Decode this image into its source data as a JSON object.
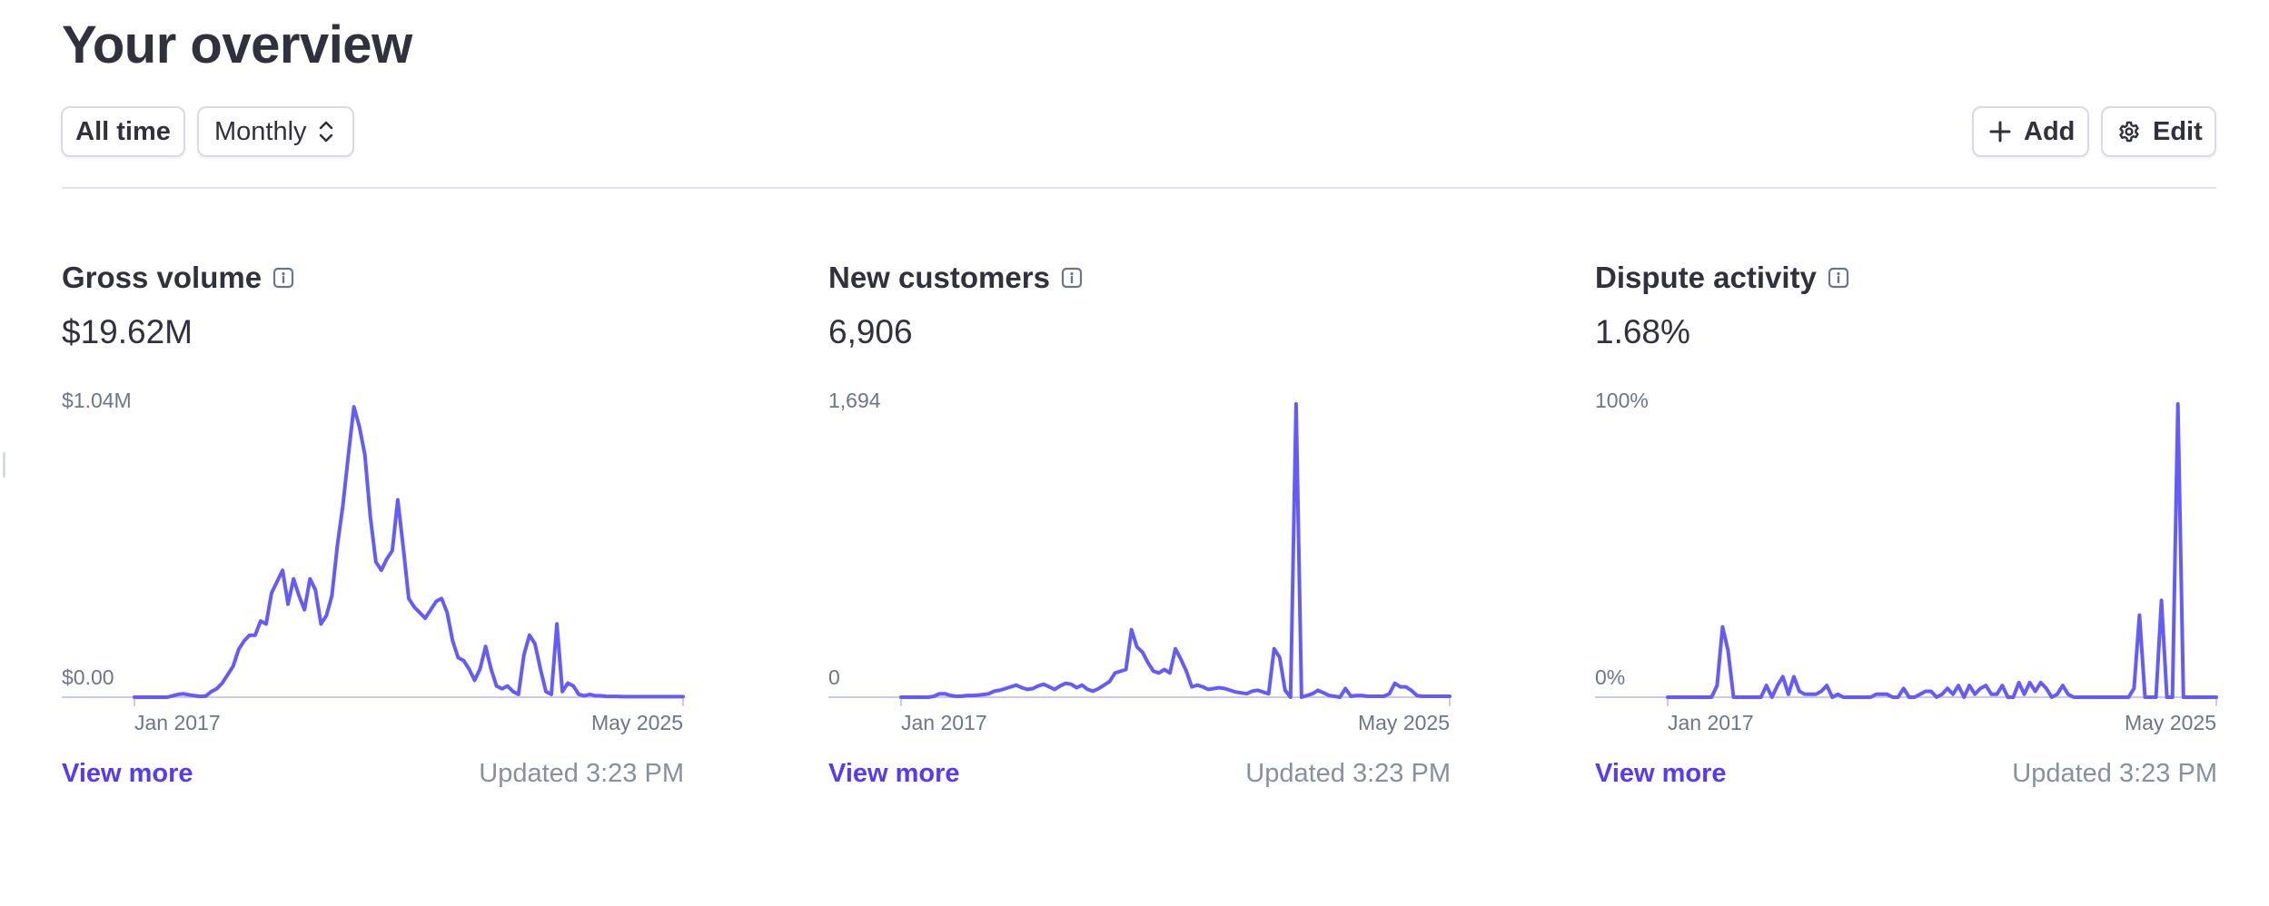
{
  "page": {
    "title": "Your overview"
  },
  "toolbar": {
    "range_label": "All time",
    "interval_label": "Monthly",
    "add_label": "Add",
    "edit_label": "Edit"
  },
  "colors": {
    "line": "#635bff",
    "link": "#533afd",
    "muted": "#87909f",
    "baseline": "#c9cbe8"
  },
  "cards": [
    {
      "title": "Gross volume",
      "value": "$19.62M",
      "y_max_label": "$1.04M",
      "y_min_label": "$0.00",
      "x_start_label": "Jan 2017",
      "x_end_label": "May 2025",
      "link_label": "View more",
      "updated_label": "Updated 3:23 PM"
    },
    {
      "title": "New customers",
      "value": "6,906",
      "y_max_label": "1,694",
      "y_min_label": "0",
      "x_start_label": "Jan 2017",
      "x_end_label": "May 2025",
      "link_label": "View more",
      "updated_label": "Updated 3:23 PM"
    },
    {
      "title": "Dispute activity",
      "value": "1.68%",
      "y_max_label": "100%",
      "y_min_label": "0%",
      "x_start_label": "Jan 2017",
      "x_end_label": "May 2025",
      "link_label": "View more",
      "updated_label": "Updated 3:23 PM"
    }
  ],
  "chart_data": [
    {
      "type": "line",
      "title": "Gross volume",
      "ylim": [
        0,
        1.04
      ],
      "x_range": [
        "Jan 2017",
        "May 2025"
      ],
      "values": [
        0,
        0,
        0,
        0,
        0,
        0,
        0,
        0.005,
        0.01,
        0.012,
        0.008,
        0.005,
        0.003,
        0.004,
        0.02,
        0.03,
        0.05,
        0.08,
        0.11,
        0.17,
        0.2,
        0.22,
        0.22,
        0.27,
        0.26,
        0.37,
        0.41,
        0.45,
        0.33,
        0.42,
        0.36,
        0.31,
        0.42,
        0.38,
        0.26,
        0.29,
        0.36,
        0.54,
        0.68,
        0.86,
        1.03,
        0.96,
        0.86,
        0.64,
        0.48,
        0.45,
        0.49,
        0.52,
        0.7,
        0.53,
        0.35,
        0.32,
        0.3,
        0.28,
        0.31,
        0.34,
        0.35,
        0.3,
        0.2,
        0.14,
        0.13,
        0.1,
        0.06,
        0.1,
        0.18,
        0.1,
        0.04,
        0.03,
        0.04,
        0.02,
        0.01,
        0.15,
        0.22,
        0.19,
        0.1,
        0.02,
        0.01,
        0.26,
        0.02,
        0.05,
        0.04,
        0.01,
        0.005,
        0.01,
        0.005,
        0.005,
        0.003,
        0.003,
        0.003,
        0.002,
        0.002,
        0.002,
        0.002,
        0.002,
        0.002,
        0.002,
        0.002,
        0.002,
        0.002,
        0.002,
        0.002
      ]
    },
    {
      "type": "line",
      "title": "New customers",
      "ylim": [
        0,
        1694
      ],
      "x_range": [
        "Jan 2017",
        "May 2025"
      ],
      "values": [
        0,
        0,
        0,
        0,
        0,
        0,
        5,
        20,
        20,
        10,
        5,
        5,
        10,
        10,
        12,
        15,
        20,
        35,
        40,
        50,
        60,
        70,
        55,
        45,
        50,
        65,
        75,
        60,
        45,
        65,
        80,
        75,
        55,
        70,
        45,
        35,
        50,
        70,
        90,
        140,
        150,
        160,
        390,
        290,
        260,
        200,
        150,
        140,
        160,
        140,
        280,
        220,
        150,
        60,
        70,
        60,
        45,
        50,
        55,
        50,
        40,
        30,
        25,
        20,
        35,
        40,
        30,
        20,
        280,
        230,
        40,
        0,
        1694,
        0,
        10,
        20,
        40,
        25,
        10,
        5,
        0,
        50,
        5,
        10,
        10,
        5,
        5,
        5,
        5,
        20,
        80,
        60,
        60,
        40,
        10,
        5,
        5,
        5,
        5,
        5,
        5
      ]
    },
    {
      "type": "line",
      "title": "Dispute activity",
      "ylim": [
        0,
        100
      ],
      "x_range": [
        "Jan 2017",
        "May 2025"
      ],
      "values": [
        0,
        0,
        0,
        0,
        0,
        0,
        0,
        0,
        0,
        4,
        24,
        16,
        0,
        0,
        0,
        0,
        0,
        0,
        4,
        0,
        4,
        7,
        1,
        7,
        2,
        1,
        1,
        1,
        2,
        4,
        0,
        1,
        0,
        0,
        0,
        0,
        0,
        0,
        1,
        1,
        1,
        0,
        0,
        3,
        0,
        0,
        1,
        2,
        2,
        0,
        1,
        3,
        1,
        4,
        0,
        4,
        1,
        3,
        4,
        1,
        1,
        4,
        0,
        0,
        5,
        1,
        5,
        2,
        5,
        3,
        0,
        1,
        4,
        1,
        0,
        0,
        0,
        0,
        0,
        0,
        0,
        0,
        0,
        0,
        0,
        3,
        28,
        0,
        0,
        0,
        33,
        0,
        0,
        100,
        0,
        0,
        0,
        0,
        0,
        0,
        0
      ]
    }
  ]
}
